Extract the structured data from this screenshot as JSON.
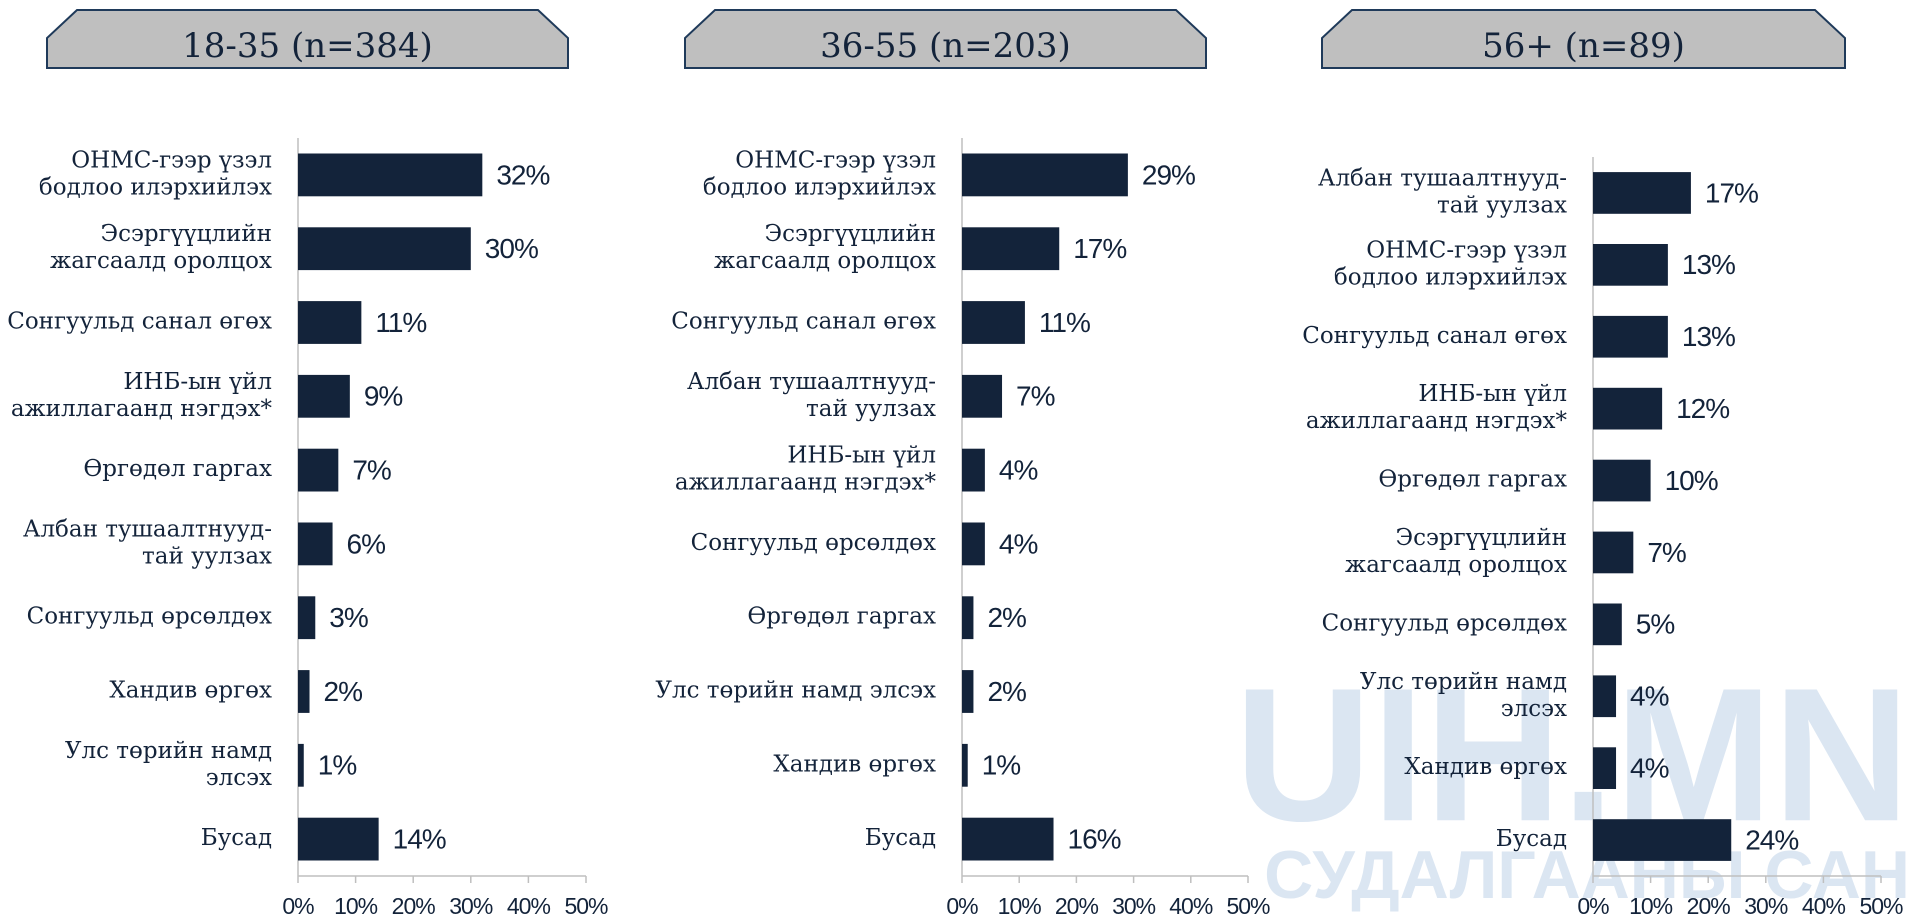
{
  "chart_data": [
    {
      "type": "bar",
      "orientation": "horizontal",
      "title": "18-35 (n=384)",
      "color": "#13233a",
      "categories": [
        "ОНМС-гээр үзэл\nбодлоо илэрхийлэх",
        "Эсэргүүцлийн\nжагсаалд оролцох",
        "Сонгуульд санал өгөх",
        "ИНБ-ын үйл\nажиллагаанд нэгдэх*",
        "Өргөдөл гаргах",
        "Албан тушаалтнууд-\nтай уулзах",
        "Сонгуульд өрсөлдөх",
        "Хандив өргөх",
        "Улс төрийн намд\nэлсэх",
        "Бусад"
      ],
      "values": [
        32,
        30,
        11,
        9,
        7,
        6,
        3,
        2,
        1,
        14
      ],
      "value_labels": [
        "32%",
        "30%",
        "11%",
        "9%",
        "7%",
        "6%",
        "3%",
        "2%",
        "1%",
        "14%"
      ],
      "xlim": [
        0,
        50
      ],
      "xticks": [
        {
          "value": 0,
          "label": "0%"
        },
        {
          "value": 10,
          "label": "10%"
        },
        {
          "value": 20,
          "label": "20%"
        },
        {
          "value": 30,
          "label": "30%"
        },
        {
          "value": 40,
          "label": "40%"
        },
        {
          "value": 50,
          "label": "50%"
        }
      ]
    },
    {
      "type": "bar",
      "orientation": "horizontal",
      "title": "36-55 (n=203)",
      "color": "#13233a",
      "categories": [
        "ОНМС-гээр үзэл\nбодлоо илэрхийлэх",
        "Эсэргүүцлийн\nжагсаалд оролцох",
        "Сонгуульд санал өгөх",
        "Албан тушаалтнууд-\nтай уулзах",
        "ИНБ-ын үйл\nажиллагаанд нэгдэх*",
        "Сонгуульд өрсөлдөх",
        "Өргөдөл гаргах",
        "Улс төрийн намд элсэх",
        "Хандив өргөх",
        "Бусад"
      ],
      "values": [
        29,
        17,
        11,
        7,
        4,
        4,
        2,
        2,
        1,
        16
      ],
      "value_labels": [
        "29%",
        "17%",
        "11%",
        "7%",
        "4%",
        "4%",
        "2%",
        "2%",
        "1%",
        "16%"
      ],
      "xlim": [
        0,
        50
      ],
      "xticks": [
        {
          "value": 0,
          "label": "0%"
        },
        {
          "value": 10,
          "label": "10%"
        },
        {
          "value": 20,
          "label": "20%"
        },
        {
          "value": 30,
          "label": "30%"
        },
        {
          "value": 40,
          "label": "40%"
        },
        {
          "value": 50,
          "label": "50%"
        }
      ]
    },
    {
      "type": "bar",
      "orientation": "horizontal",
      "title": "56+ (n=89)",
      "color": "#13233a",
      "categories": [
        "Албан тушаалтнууд-\nтай уулзах",
        "ОНМС-гээр үзэл\nбодлоо илэрхийлэх",
        "Сонгуульд санал өгөх",
        "ИНБ-ын үйл\nажиллагаанд нэгдэх*",
        "Өргөдөл гаргах",
        "Эсэргүүцлийн\nжагсаалд оролцох",
        "Сонгуульд өрсөлдөх",
        "Улс төрийн намд\nэлсэх",
        "Хандив өргөх",
        "Бусад"
      ],
      "values": [
        17,
        13,
        13,
        12,
        10,
        7,
        5,
        4,
        4,
        24
      ],
      "value_labels": [
        "17%",
        "13%",
        "13%",
        "12%",
        "10%",
        "7%",
        "5%",
        "4%",
        "4%",
        "24%"
      ],
      "xlim": [
        0,
        50
      ],
      "xticks": [
        {
          "value": 0,
          "label": "0%"
        },
        {
          "value": 10,
          "label": "10%"
        },
        {
          "value": 20,
          "label": "20%"
        },
        {
          "value": 30,
          "label": "30%"
        },
        {
          "value": 40,
          "label": "40%"
        },
        {
          "value": 50,
          "label": "50%"
        }
      ]
    }
  ],
  "watermark": {
    "line1": "UIH.MN",
    "line2": "СУДАЛГААНЫ САН"
  }
}
